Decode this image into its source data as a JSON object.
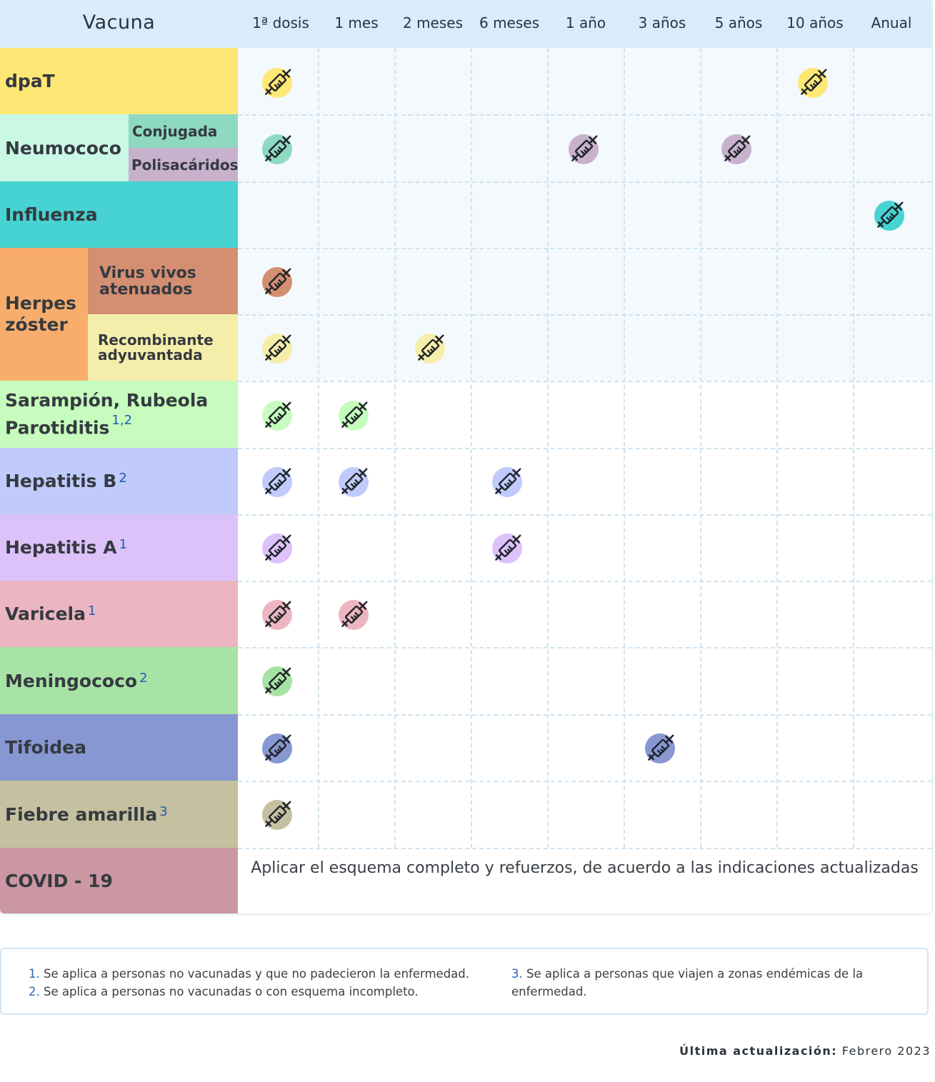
{
  "header": {
    "vaccine_label": "Vacuna",
    "columns": [
      "1ª dosis",
      "1 mes",
      "2 meses",
      "6 meses",
      "1 año",
      "3 años",
      "5 años",
      "10 años",
      "Anual"
    ]
  },
  "rows": {
    "dpat": {
      "label": "dpaT",
      "color": "#fde775"
    },
    "neumococo": {
      "label": "Neumococo",
      "color": "#c9f8e5",
      "conjugada": "Conjugada",
      "conjugada_color": "#8ed9c1",
      "polisacaridos": "Polisacáridos",
      "polisacaridos_color": "#c7b1cd"
    },
    "influenza": {
      "label": "Influenza",
      "color": "#46d3d2"
    },
    "herpes": {
      "label": "Herpes zóster",
      "color": "#f9ad6d",
      "virus_vivos": "Virus vivos atenuados",
      "virus_vivos_color": "#d48f72",
      "recombinante": "Recombinante adyuvantada",
      "recombinante_color": "#f5eeaa"
    },
    "sarampion": {
      "label_line1": "Sarampión, Rubeola",
      "label_line2": "Parotiditis",
      "sup": "1,2",
      "color": "#c6fcbd"
    },
    "hepatitis_b": {
      "label": "Hepatitis B",
      "sup": "2",
      "color": "#c0cbfb"
    },
    "hepatitis_a": {
      "label": "Hepatitis A",
      "sup": "1",
      "color": "#ddc2fa"
    },
    "varicela": {
      "label": "Varicela",
      "sup": "1",
      "color": "#ebb6c1"
    },
    "meningococo": {
      "label": "Meningococo",
      "sup": "2",
      "color": "#a8e3a6"
    },
    "tifoidea": {
      "label": "Tifoidea",
      "color": "#8797d1"
    },
    "fiebre": {
      "label": "Fiebre amarilla",
      "sup": "3",
      "color": "#c5c09f"
    },
    "covid": {
      "label": "COVID - 19",
      "color": "#cb97a2",
      "note": "Aplicar el esquema completo y refuerzos, de acuerdo a las indicaciones actualizadas"
    }
  },
  "icons": {
    "syringe": "syringe-icon"
  },
  "footnotes": {
    "n1_num": "1.",
    "n1_text": "Se aplica a personas no vacunadas y que no padecieron la enfermedad.",
    "n2_num": "2.",
    "n2_text": "Se aplica a personas no vacunadas o con esquema incompleto.",
    "n3_num": "3.",
    "n3_text_line1": "Se aplica a personas que viajen a zonas endémicas de la",
    "n3_text_line2": "enfermedad."
  },
  "updated": {
    "label": "Última actualización:",
    "value": "Febrero 2023"
  }
}
